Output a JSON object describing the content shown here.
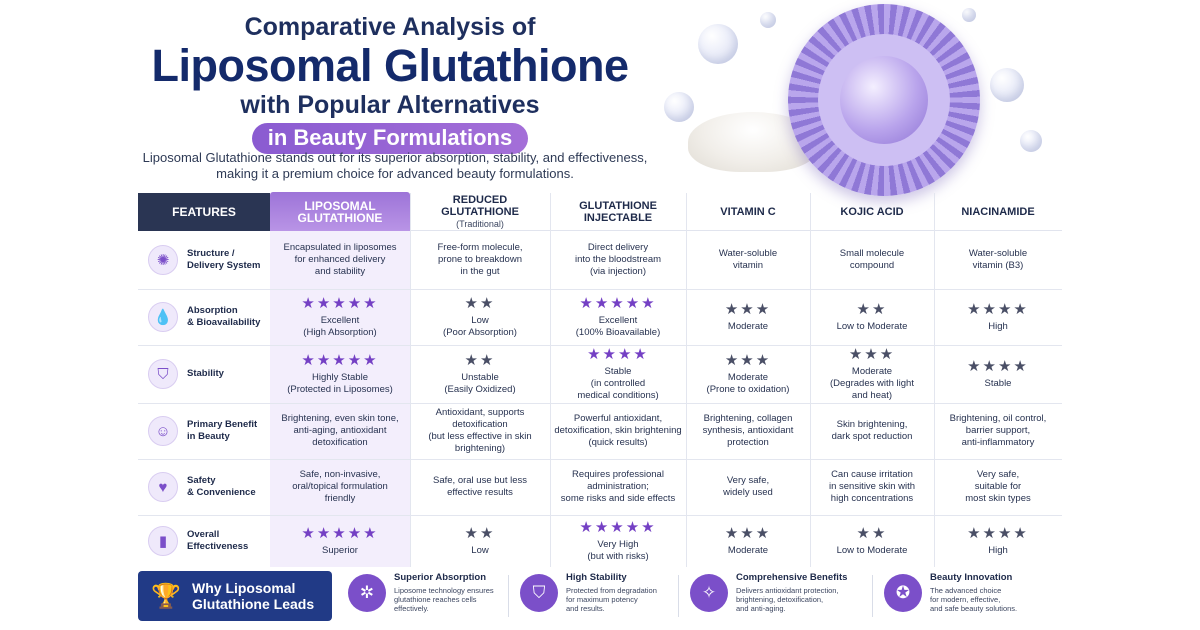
{
  "header": {
    "line1": "Comparative Analysis of",
    "line2": "Liposomal Glutathione",
    "line3": "with Popular Alternatives",
    "line4": "in Beauty Formulations",
    "subtitle_1": "Liposomal Glutathione stands out for its superior absorption, stability, and effectiveness,",
    "subtitle_2": "making it a premium choice for advanced beauty formulations."
  },
  "colors": {
    "navy": "#2a3553",
    "purple": "#7b4fc9",
    "highlight": "#f3eefc",
    "footer_navy": "#213a86"
  },
  "table": {
    "features_header": "FEATURES",
    "columns": [
      {
        "line1": "LIPOSOMAL",
        "line2": "GLUTATHIONE",
        "note": ""
      },
      {
        "line1": "REDUCED",
        "line2": "GLUTATHIONE",
        "note": "(Traditional)"
      },
      {
        "line1": "GLUTATHIONE",
        "line2": "INJECTABLE",
        "note": ""
      },
      {
        "line1": "VITAMIN C",
        "line2": "",
        "note": ""
      },
      {
        "line1": "KOJIC ACID",
        "line2": "",
        "note": ""
      },
      {
        "line1": "NIACINAMIDE",
        "line2": "",
        "note": ""
      }
    ],
    "rows": [
      {
        "feature_1": "Structure /",
        "feature_2": "Delivery System",
        "icon": "molecule-icon",
        "glyph": "✺",
        "cells": [
          {
            "stars": "",
            "purple": false,
            "l1": "Encapsulated in liposomes",
            "l2": "for enhanced delivery",
            "l3": "and stability"
          },
          {
            "stars": "",
            "purple": false,
            "l1": "Free-form molecule,",
            "l2": "prone to breakdown",
            "l3": "in the gut"
          },
          {
            "stars": "",
            "purple": false,
            "l1": "Direct delivery",
            "l2": "into the bloodstream",
            "l3": "(via injection)"
          },
          {
            "stars": "",
            "purple": false,
            "l1": "Water-soluble",
            "l2": "vitamin",
            "l3": ""
          },
          {
            "stars": "",
            "purple": false,
            "l1": "Small molecule",
            "l2": "compound",
            "l3": ""
          },
          {
            "stars": "",
            "purple": false,
            "l1": "Water-soluble",
            "l2": "vitamin (B3)",
            "l3": ""
          }
        ]
      },
      {
        "feature_1": "Absorption",
        "feature_2": "& Bioavailability",
        "icon": "droplet-icon",
        "glyph": "💧",
        "cells": [
          {
            "stars": "★★★★★",
            "purple": true,
            "l1": "Excellent",
            "l2": "(High Absorption)",
            "l3": ""
          },
          {
            "stars": "★★",
            "purple": false,
            "l1": "Low",
            "l2": "(Poor Absorption)",
            "l3": ""
          },
          {
            "stars": "★★★★★",
            "purple": true,
            "l1": "Excellent",
            "l2": "(100% Bioavailable)",
            "l3": ""
          },
          {
            "stars": "★★★",
            "purple": false,
            "l1": "Moderate",
            "l2": "",
            "l3": ""
          },
          {
            "stars": "★★",
            "purple": false,
            "l1": "Low to Moderate",
            "l2": "",
            "l3": ""
          },
          {
            "stars": "★★★★",
            "purple": false,
            "l1": "High",
            "l2": "",
            "l3": ""
          }
        ]
      },
      {
        "feature_1": "Stability",
        "feature_2": "",
        "icon": "shield-icon",
        "glyph": "⛉",
        "cells": [
          {
            "stars": "★★★★★",
            "purple": true,
            "l1": "Highly Stable",
            "l2": "(Protected in Liposomes)",
            "l3": ""
          },
          {
            "stars": "★★",
            "purple": false,
            "l1": "Unstable",
            "l2": "(Easily Oxidized)",
            "l3": ""
          },
          {
            "stars": "★★★★",
            "purple": true,
            "l1": "Stable",
            "l2": "(in controlled",
            "l3": "medical conditions)"
          },
          {
            "stars": "★★★",
            "purple": false,
            "l1": "Moderate",
            "l2": "(Prone to oxidation)",
            "l3": ""
          },
          {
            "stars": "★★★",
            "purple": false,
            "l1": "Moderate",
            "l2": "(Degrades with light",
            "l3": "and heat)"
          },
          {
            "stars": "★★★★",
            "purple": false,
            "l1": "Stable",
            "l2": "",
            "l3": ""
          }
        ]
      },
      {
        "feature_1": "Primary Benefit",
        "feature_2": "in Beauty",
        "icon": "face-icon",
        "glyph": "☺",
        "cells": [
          {
            "stars": "",
            "purple": false,
            "l1": "Brightening, even skin tone,",
            "l2": "anti-aging, antioxidant",
            "l3": "detoxification"
          },
          {
            "stars": "",
            "purple": false,
            "l1": "Antioxidant, supports",
            "l2": "detoxification",
            "l3": "(but less effective in skin brightening)"
          },
          {
            "stars": "",
            "purple": false,
            "l1": "Powerful antioxidant,",
            "l2": "detoxification, skin brightening",
            "l3": "(quick results)"
          },
          {
            "stars": "",
            "purple": false,
            "l1": "Brightening, collagen",
            "l2": "synthesis, antioxidant",
            "l3": "protection"
          },
          {
            "stars": "",
            "purple": false,
            "l1": "Skin brightening,",
            "l2": "dark spot reduction",
            "l3": ""
          },
          {
            "stars": "",
            "purple": false,
            "l1": "Brightening, oil control,",
            "l2": "barrier support,",
            "l3": "anti-inflammatory"
          }
        ]
      },
      {
        "feature_1": "Safety",
        "feature_2": "& Convenience",
        "icon": "heart-plus-icon",
        "glyph": "♥",
        "cells": [
          {
            "stars": "",
            "purple": false,
            "l1": "Safe, non-invasive,",
            "l2": "oral/topical formulation",
            "l3": "friendly"
          },
          {
            "stars": "",
            "purple": false,
            "l1": "Safe, oral use but less",
            "l2": "effective results",
            "l3": ""
          },
          {
            "stars": "",
            "purple": false,
            "l1": "Requires professional",
            "l2": "administration;",
            "l3": "some risks and side effects"
          },
          {
            "stars": "",
            "purple": false,
            "l1": "Very safe,",
            "l2": "widely used",
            "l3": ""
          },
          {
            "stars": "",
            "purple": false,
            "l1": "Can cause irritation",
            "l2": "in sensitive skin with",
            "l3": "high concentrations"
          },
          {
            "stars": "",
            "purple": false,
            "l1": "Very safe,",
            "l2": "suitable for",
            "l3": "most skin types"
          }
        ]
      },
      {
        "feature_1": "Overall",
        "feature_2": "Effectiveness",
        "icon": "bar-chart-icon",
        "glyph": "▮",
        "cells": [
          {
            "stars": "★★★★★",
            "purple": true,
            "l1": "Superior",
            "l2": "",
            "l3": ""
          },
          {
            "stars": "★★",
            "purple": false,
            "l1": "Low",
            "l2": "",
            "l3": ""
          },
          {
            "stars": "★★★★★",
            "purple": true,
            "l1": "Very High",
            "l2": "(but with risks)",
            "l3": ""
          },
          {
            "stars": "★★★",
            "purple": false,
            "l1": "Moderate",
            "l2": "",
            "l3": ""
          },
          {
            "stars": "★★",
            "purple": false,
            "l1": "Low to Moderate",
            "l2": "",
            "l3": ""
          },
          {
            "stars": "★★★★",
            "purple": false,
            "l1": "High",
            "l2": "",
            "l3": ""
          }
        ]
      }
    ]
  },
  "footer": {
    "why_1": "Why Liposomal",
    "why_2": "Glutathione Leads",
    "items": [
      {
        "title": "Superior Absorption",
        "d1": "Liposome technology ensures",
        "d2": "glutathione reaches cells",
        "d3": "effectively.",
        "icon": "network-icon",
        "glyph": "✲"
      },
      {
        "title": "High Stability",
        "d1": "Protected from degradation",
        "d2": "for maximum potency",
        "d3": "and results.",
        "icon": "shield-check-icon",
        "glyph": "⛉"
      },
      {
        "title": "Comprehensive Benefits",
        "d1": "Delivers antioxidant protection,",
        "d2": "brightening, detoxification,",
        "d3": "and anti-aging.",
        "icon": "sparkle-face-icon",
        "glyph": "✧"
      },
      {
        "title": "Beauty Innovation",
        "d1": "The advanced choice",
        "d2": "for modern, effective,",
        "d3": "and safe beauty solutions.",
        "icon": "award-icon",
        "glyph": "✪"
      }
    ]
  }
}
